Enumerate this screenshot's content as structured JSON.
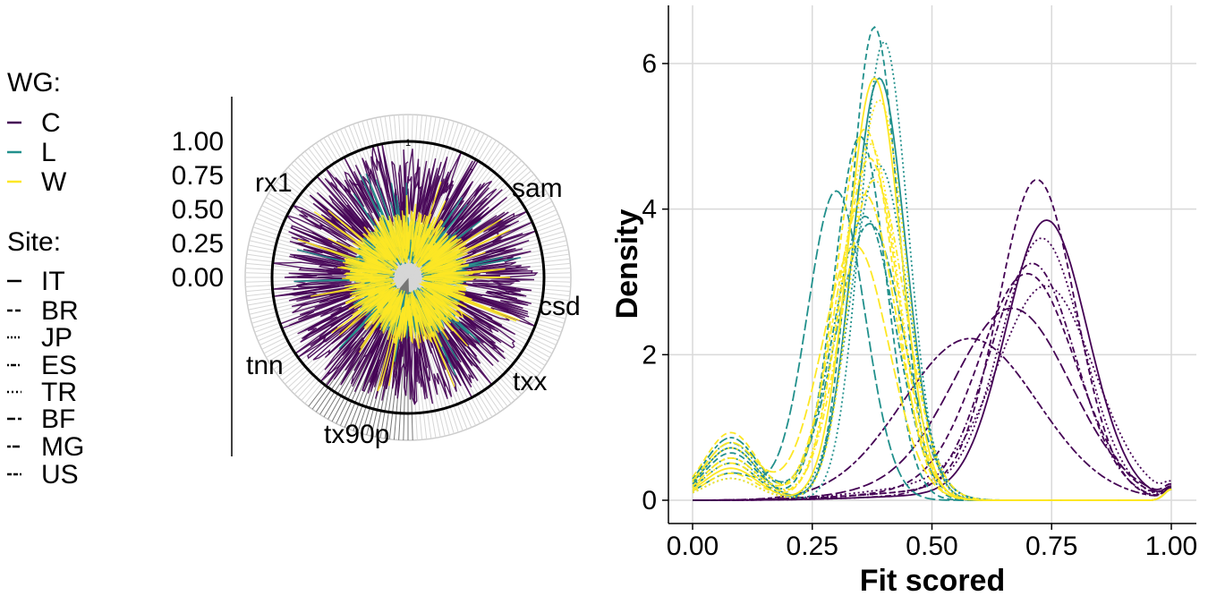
{
  "legend": {
    "wg_title": "WG:",
    "wg_items": [
      {
        "label": "C",
        "color": "#440154"
      },
      {
        "label": "L",
        "color": "#21908C"
      },
      {
        "label": "W",
        "color": "#FDE725"
      }
    ],
    "site_title": "Site:",
    "site_items": [
      {
        "label": "IT",
        "dash": "solid"
      },
      {
        "label": "BR",
        "dash": "dashed"
      },
      {
        "label": "JP",
        "dash": "dotted"
      },
      {
        "label": "ES",
        "dash": "dotdash"
      },
      {
        "label": "TR",
        "dash": "dotted"
      },
      {
        "label": "BF",
        "dash": "longdash"
      },
      {
        "label": "MG",
        "dash": "twodash"
      },
      {
        "label": "US",
        "dash": "dashed"
      }
    ]
  },
  "chart_data": [
    {
      "type": "radar",
      "radial_ticks": [
        "1.00",
        "0.75",
        "0.50",
        "0.25",
        "0.00"
      ],
      "rlim": [
        0,
        1
      ],
      "reference_circle_value": 1,
      "reference_circle_label": "1",
      "indices": [
        "sam",
        "csd",
        "txx",
        "tx90p",
        "tnn",
        "rx1"
      ],
      "series": [
        {
          "wg": "C",
          "typical_range": [
            0.3,
            0.95
          ]
        },
        {
          "wg": "L",
          "typical_range": [
            0.1,
            0.45
          ]
        },
        {
          "wg": "W",
          "typical_range": [
            0.1,
            0.5
          ]
        }
      ]
    },
    {
      "type": "line",
      "xlabel": "Fit scored",
      "ylabel": "Density",
      "xlim": [
        0,
        1
      ],
      "ylim": [
        0,
        6.7
      ],
      "xticks": [
        "0.00",
        "0.25",
        "0.50",
        "0.75",
        "1.00"
      ],
      "yticks": [
        "0",
        "2",
        "4",
        "6"
      ],
      "grid": true,
      "series": [
        {
          "wg": "C",
          "site": "IT",
          "peak_x": 0.74,
          "peak_y": 3.8,
          "sd": 0.085
        },
        {
          "wg": "C",
          "site": "BR",
          "peak_x": 0.72,
          "peak_y": 4.3,
          "sd": 0.08
        },
        {
          "wg": "C",
          "site": "JP",
          "peak_x": 0.74,
          "peak_y": 2.8,
          "sd": 0.1
        },
        {
          "wg": "C",
          "site": "ES",
          "peak_x": 0.71,
          "peak_y": 3.2,
          "sd": 0.09
        },
        {
          "wg": "C",
          "site": "TR",
          "peak_x": 0.73,
          "peak_y": 3.5,
          "sd": 0.085
        },
        {
          "wg": "C",
          "site": "BF",
          "peak_x": 0.67,
          "peak_y": 2.45,
          "sd": 0.12
        },
        {
          "wg": "C",
          "site": "MG",
          "peak_x": 0.58,
          "peak_y": 2.15,
          "sd": 0.14
        },
        {
          "wg": "C",
          "site": "US",
          "peak_x": 0.7,
          "peak_y": 3.0,
          "sd": 0.1
        },
        {
          "wg": "L",
          "site": "IT",
          "peak_x": 0.39,
          "peak_y": 5.8,
          "sd": 0.055
        },
        {
          "wg": "L",
          "site": "BR",
          "peak_x": 0.38,
          "peak_y": 6.5,
          "sd": 0.05
        },
        {
          "wg": "L",
          "site": "JP",
          "peak_x": 0.39,
          "peak_y": 4.6,
          "sd": 0.06
        },
        {
          "wg": "L",
          "site": "ES",
          "peak_x": 0.36,
          "peak_y": 3.9,
          "sd": 0.065
        },
        {
          "wg": "L",
          "site": "TR",
          "peak_x": 0.4,
          "peak_y": 6.3,
          "sd": 0.05
        },
        {
          "wg": "L",
          "site": "BF",
          "peak_x": 0.3,
          "peak_y": 4.25,
          "sd": 0.06
        },
        {
          "wg": "L",
          "site": "MG",
          "peak_x": 0.37,
          "peak_y": 3.8,
          "sd": 0.07
        },
        {
          "wg": "L",
          "site": "US",
          "peak_x": 0.35,
          "peak_y": 5.0,
          "sd": 0.055
        },
        {
          "wg": "W",
          "site": "IT",
          "peak_x": 0.38,
          "peak_y": 5.8,
          "sd": 0.055
        },
        {
          "wg": "W",
          "site": "BR",
          "peak_x": 0.36,
          "peak_y": 5.1,
          "sd": 0.06
        },
        {
          "wg": "W",
          "site": "JP",
          "peak_x": 0.37,
          "peak_y": 4.9,
          "sd": 0.06
        },
        {
          "wg": "W",
          "site": "ES",
          "peak_x": 0.38,
          "peak_y": 4.4,
          "sd": 0.065
        },
        {
          "wg": "W",
          "site": "TR",
          "peak_x": 0.39,
          "peak_y": 5.5,
          "sd": 0.055
        },
        {
          "wg": "W",
          "site": "BF",
          "peak_x": 0.34,
          "peak_y": 3.5,
          "sd": 0.07
        },
        {
          "wg": "W",
          "site": "MG",
          "peak_x": 0.36,
          "peak_y": 4.2,
          "sd": 0.065
        },
        {
          "wg": "W",
          "site": "US",
          "peak_x": 0.37,
          "peak_y": 4.7,
          "sd": 0.06
        }
      ]
    }
  ]
}
